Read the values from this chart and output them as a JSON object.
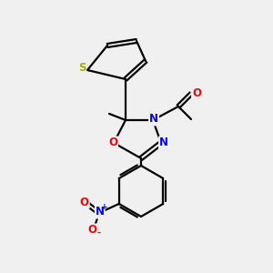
{
  "background_color": "#f0f0f0",
  "bond_color": "#000000",
  "atom_colors": {
    "S": "#aaaa00",
    "O": "#ff0000",
    "N": "#0000ff",
    "C": "#000000"
  },
  "figsize": [
    3.0,
    3.0
  ],
  "dpi": 100
}
